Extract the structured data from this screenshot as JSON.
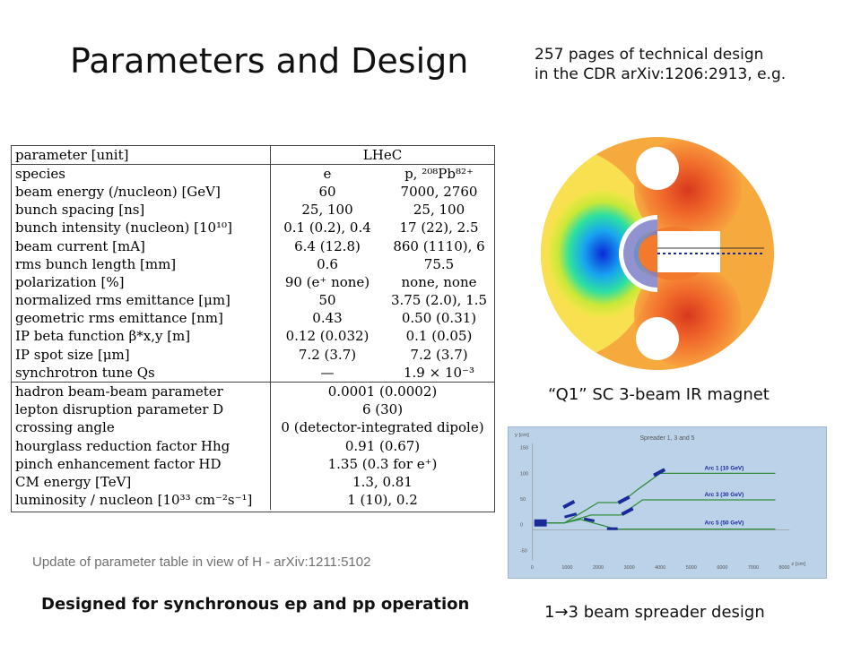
{
  "slide": {
    "title": "Parameters and Design",
    "reference_line1": "257 pages of technical design",
    "reference_line2": "in the CDR arXiv:1206:2913, e.g.",
    "update_note": "Update of parameter table in view of H - arXiv:1211:5102",
    "designed_for": "Designed for  synchronous ep and pp operation",
    "magnet_caption": "“Q1” SC 3-beam IR magnet",
    "spreader_caption": "1→3 beam spreader design"
  },
  "param_table": {
    "header": {
      "parameter": "parameter [unit]",
      "machine": "LHeC"
    },
    "rows": [
      {
        "parameter": "species",
        "v1": "e",
        "v2": "p, ²⁰⁸Pb⁸²⁺"
      },
      {
        "parameter": "beam energy (/nucleon) [GeV]",
        "v1": "60",
        "v2": "7000, 2760"
      },
      {
        "parameter": "bunch spacing [ns]",
        "v1": "25, 100",
        "v2": "25, 100"
      },
      {
        "parameter": "bunch intensity (nucleon) [10¹⁰]",
        "v1": "0.1 (0.2), 0.4",
        "v2": "17 (22), 2.5"
      },
      {
        "parameter": "beam current [mA]",
        "v1": "6.4 (12.8)",
        "v2": "860 (1110), 6"
      },
      {
        "parameter": "rms bunch length [mm]",
        "v1": "0.6",
        "v2": "75.5"
      },
      {
        "parameter": "polarization [%]",
        "v1": "90 (e⁺ none)",
        "v2": "none, none"
      },
      {
        "parameter": "normalized rms emittance [μm]",
        "v1": "50",
        "v2": "3.75 (2.0), 1.5"
      },
      {
        "parameter": "geometric rms emittance [nm]",
        "v1": "0.43",
        "v2": "0.50 (0.31)"
      },
      {
        "parameter": "IP beta function β*x,y [m]",
        "v1": "0.12 (0.032)",
        "v2": "0.1 (0.05)"
      },
      {
        "parameter": "IP spot size [μm]",
        "v1": "7.2 (3.7)",
        "v2": "7.2 (3.7)"
      },
      {
        "parameter": "synchrotron tune Qs",
        "v1": "—",
        "v2": "1.9 × 10⁻³"
      }
    ],
    "shared_rows": [
      {
        "parameter": "hadron beam-beam parameter",
        "value": "0.0001 (0.0002)"
      },
      {
        "parameter": "lepton disruption parameter D",
        "value": "6 (30)"
      },
      {
        "parameter": "crossing angle",
        "value": "0 (detector-integrated dipole)"
      },
      {
        "parameter": "hourglass reduction factor Hhg",
        "value": "0.91 (0.67)"
      },
      {
        "parameter": "pinch enhancement factor HD",
        "value": "1.35 (0.3 for e⁺)"
      },
      {
        "parameter": "CM energy [TeV]",
        "value": "1.3, 0.81"
      },
      {
        "parameter": "luminosity / nucleon [10³³ cm⁻²s⁻¹]",
        "value": "1 (10), 0.2"
      }
    ]
  },
  "spreader_plot": {
    "title": "Spreader 1, 3 and 5",
    "y_axis_label": "y [cm]",
    "x_axis_label": "z [cm]",
    "y_ticks": [
      "150",
      "100",
      "50",
      "0",
      "-50"
    ],
    "x_ticks": [
      "0",
      "1000",
      "2000",
      "3000",
      "4000",
      "5000",
      "6000",
      "7000",
      "8000"
    ],
    "arc_labels": [
      "Arc 1 (10 GeV)",
      "Arc 3 (30 GeV)",
      "Arc 5 (50 GeV)"
    ],
    "line_color": "#2f8f3a",
    "magnet_color": "#1a2a9c"
  },
  "colors": {
    "title_text": "#111111",
    "note_text": "#707070"
  },
  "icons": {
    "magnet": "magnet-cross-section-image",
    "spreader": "beam-spreader-plot"
  }
}
